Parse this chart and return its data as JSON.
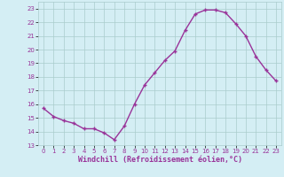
{
  "x": [
    0,
    1,
    2,
    3,
    4,
    5,
    6,
    7,
    8,
    9,
    10,
    11,
    12,
    13,
    14,
    15,
    16,
    17,
    18,
    19,
    20,
    21,
    22,
    23
  ],
  "y": [
    15.7,
    15.1,
    14.8,
    14.6,
    14.2,
    14.2,
    13.9,
    13.4,
    14.4,
    16.0,
    17.4,
    18.3,
    19.2,
    19.9,
    21.4,
    22.6,
    22.9,
    22.9,
    22.7,
    21.9,
    21.0,
    19.5,
    18.5,
    17.7
  ],
  "line_color": "#993399",
  "marker": "+",
  "marker_size": 3.5,
  "marker_linewidth": 1.0,
  "line_width": 1.0,
  "bg_color": "#d4eef4",
  "grid_color": "#aacccc",
  "xlabel": "Windchill (Refroidissement éolien,°C)",
  "xlabel_color": "#993399",
  "ylabel_ticks": [
    13,
    14,
    15,
    16,
    17,
    18,
    19,
    20,
    21,
    22,
    23
  ],
  "ylim": [
    13,
    23.5
  ],
  "xlim": [
    -0.5,
    23.5
  ],
  "xticks": [
    0,
    1,
    2,
    3,
    4,
    5,
    6,
    7,
    8,
    9,
    10,
    11,
    12,
    13,
    14,
    15,
    16,
    17,
    18,
    19,
    20,
    21,
    22,
    23
  ],
  "xtick_labels": [
    "0",
    "1",
    "2",
    "3",
    "4",
    "5",
    "6",
    "7",
    "8",
    "9",
    "10",
    "11",
    "12",
    "13",
    "14",
    "15",
    "16",
    "17",
    "18",
    "19",
    "20",
    "21",
    "22",
    "23"
  ],
  "tick_color": "#993399",
  "tick_fontsize": 5.0,
  "xlabel_fontsize": 6.0
}
